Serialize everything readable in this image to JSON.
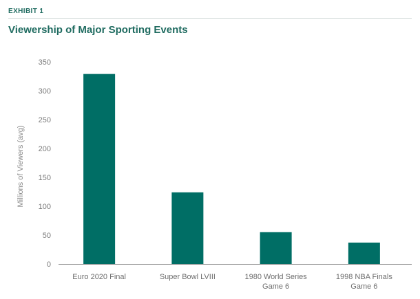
{
  "header": {
    "exhibit_label": "EXHIBIT 1",
    "title": "Viewership of Major Sporting Events"
  },
  "colors": {
    "accent": "#1f6b60",
    "bar": "#006e65",
    "axis": "#7a7a7a"
  },
  "chart_data": {
    "type": "bar",
    "title": "Viewership of Major Sporting Events",
    "xlabel": "",
    "ylabel": "Millions of Viewers (avg)",
    "ylim": [
      0,
      350
    ],
    "yticks": [
      0,
      50,
      100,
      150,
      200,
      250,
      300,
      350
    ],
    "grid": false,
    "categories": [
      [
        "Euro 2020 Final"
      ],
      [
        "Super Bowl LVIII"
      ],
      [
        "1980 World Series",
        "Game 6"
      ],
      [
        "1998 NBA Finals",
        "Game 6"
      ]
    ],
    "values": [
      329,
      124,
      55,
      37
    ]
  }
}
